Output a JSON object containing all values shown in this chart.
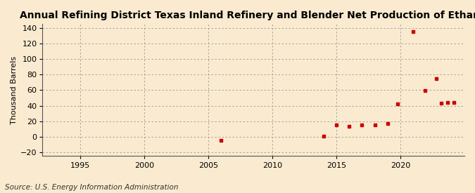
{
  "title": "Annual Refining District Texas Inland Refinery and Blender Net Production of Ethane",
  "ylabel": "Thousand Barrels",
  "source": "Source: U.S. Energy Information Administration",
  "background_color": "#faebd0",
  "plot_bg_color": "#faebd0",
  "marker_color": "#cc0000",
  "xlim": [
    1992,
    2025
  ],
  "ylim": [
    -25,
    145
  ],
  "yticks": [
    -20,
    0,
    20,
    40,
    60,
    80,
    100,
    120,
    140
  ],
  "xticks": [
    1995,
    2000,
    2005,
    2010,
    2015,
    2020
  ],
  "data": [
    {
      "year": 2006,
      "value": -5
    },
    {
      "year": 2014,
      "value": 1
    },
    {
      "year": 2015,
      "value": 15
    },
    {
      "year": 2016,
      "value": 13
    },
    {
      "year": 2017,
      "value": 15
    },
    {
      "year": 2018,
      "value": 15
    },
    {
      "year": 2019,
      "value": 17
    },
    {
      "year": 2019.8,
      "value": 42
    },
    {
      "year": 2021,
      "value": 135
    },
    {
      "year": 2021.9,
      "value": 59
    },
    {
      "year": 2022.8,
      "value": 75
    },
    {
      "year": 2023.2,
      "value": 43
    },
    {
      "year": 2023.7,
      "value": 44
    },
    {
      "year": 2024.2,
      "value": 44
    }
  ],
  "title_fontsize": 10,
  "label_fontsize": 8,
  "tick_fontsize": 8,
  "source_fontsize": 7.5
}
